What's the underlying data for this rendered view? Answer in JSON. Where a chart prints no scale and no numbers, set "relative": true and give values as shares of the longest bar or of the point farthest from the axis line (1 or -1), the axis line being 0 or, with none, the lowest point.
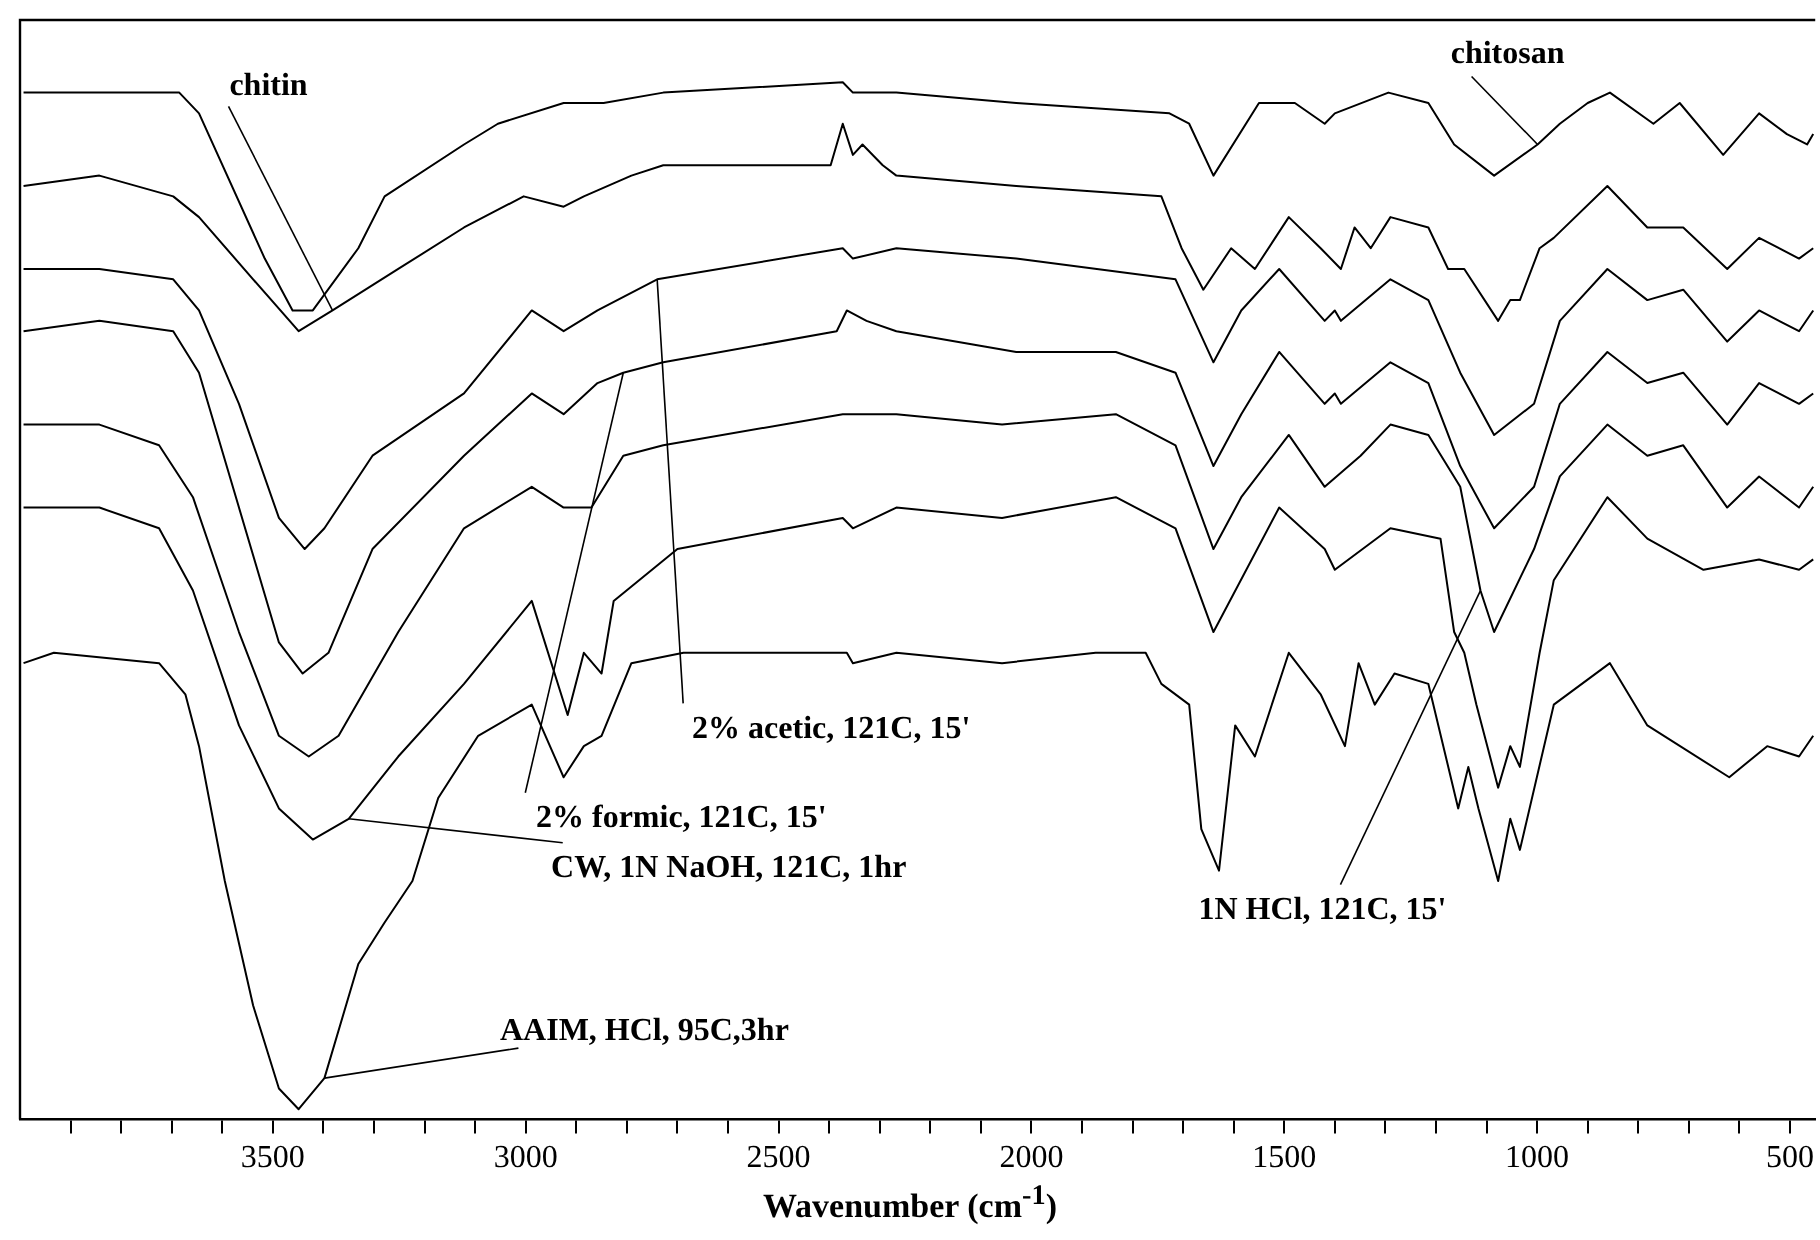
{
  "chart_data": {
    "type": "line",
    "relative": true,
    "xlabel": "Wavenumber (cm$^{-1}$)",
    "xlim": [
      4000,
      450
    ],
    "xticks": [
      {
        "value": 3900,
        "label": null
      },
      {
        "value": 3800,
        "label": null
      },
      {
        "value": 3700,
        "label": null
      },
      {
        "value": 3600,
        "label": null
      },
      3500,
      {
        "value": 3400,
        "label": null
      },
      {
        "value": 3300,
        "label": null
      },
      {
        "value": 3200,
        "label": null
      },
      {
        "value": 3100,
        "label": null
      },
      3000,
      {
        "value": 2900,
        "label": null
      },
      {
        "value": 2800,
        "label": null
      },
      {
        "value": 2700,
        "label": null
      },
      {
        "value": 2600,
        "label": null
      },
      2500,
      {
        "value": 2400,
        "label": null
      },
      {
        "value": 2300,
        "label": null
      },
      {
        "value": 2200,
        "label": null
      },
      {
        "value": 2100,
        "label": null
      },
      2000,
      {
        "value": 1900,
        "label": null
      },
      {
        "value": 1800,
        "label": null
      },
      {
        "value": 1700,
        "label": null
      },
      {
        "value": 1600,
        "label": null
      },
      1500,
      {
        "value": 1400,
        "label": null
      },
      {
        "value": 1300,
        "label": null
      },
      {
        "value": 1200,
        "label": null
      },
      {
        "value": 1100,
        "label": null
      },
      1000,
      {
        "value": 900,
        "label": null
      },
      {
        "value": 800,
        "label": null
      },
      {
        "value": 700,
        "label": null
      },
      {
        "value": 600,
        "label": null
      },
      500
    ],
    "grid": false,
    "legend": false,
    "marker": "none",
    "line_style": "solid",
    "series": [
      {
        "color": "#000000",
        "x": [
          3993,
          3685,
          3646,
          3516,
          3461,
          3421,
          3331,
          3279,
          3122,
          3055,
          2925,
          2846,
          2728,
          2373,
          2353,
          2267,
          2030,
          1727,
          1688,
          1640,
          1550,
          1479,
          1420,
          1400,
          1294,
          1215,
          1164,
          1085,
          999,
          955,
          900,
          856,
          770,
          718,
          632,
          561,
          506,
          466,
          454
        ],
        "values": [
          0.99,
          0.99,
          0.97,
          0.83,
          0.78,
          0.78,
          0.84,
          0.89,
          0.94,
          0.96,
          0.98,
          0.98,
          0.99,
          1.0,
          0.99,
          0.99,
          0.98,
          0.97,
          0.96,
          0.91,
          0.98,
          0.98,
          0.96,
          0.97,
          0.99,
          0.98,
          0.94,
          0.91,
          0.94,
          0.96,
          0.98,
          0.99,
          0.96,
          0.98,
          0.93,
          0.97,
          0.95,
          0.94,
          0.95
        ]
      },
      {
        "color": "#000000",
        "x": [
          3993,
          3843,
          3697,
          3646,
          3539,
          3449,
          3382,
          3252,
          3122,
          3004,
          2925,
          2885,
          2791,
          2728,
          2397,
          2373,
          2353,
          2334,
          2294,
          2267,
          2030,
          1743,
          1703,
          1660,
          1605,
          1558,
          1491,
          1428,
          1388,
          1361,
          1329,
          1290,
          1215,
          1176,
          1144,
          1077,
          1053,
          1034,
          995,
          967,
          861,
          782,
          711,
          624,
          561,
          482,
          454
        ],
        "values": [
          0.9,
          0.91,
          0.89,
          0.87,
          0.81,
          0.76,
          0.78,
          0.82,
          0.86,
          0.89,
          0.88,
          0.89,
          0.91,
          0.92,
          0.92,
          0.96,
          0.93,
          0.94,
          0.92,
          0.91,
          0.9,
          0.89,
          0.84,
          0.8,
          0.84,
          0.82,
          0.87,
          0.84,
          0.82,
          0.86,
          0.84,
          0.87,
          0.86,
          0.82,
          0.82,
          0.77,
          0.79,
          0.79,
          0.84,
          0.85,
          0.9,
          0.86,
          0.86,
          0.82,
          0.85,
          0.83,
          0.84
        ]
      },
      {
        "color": "#000000",
        "x": [
          3993,
          3843,
          3697,
          3646,
          3567,
          3488,
          3437,
          3398,
          3303,
          3122,
          2988,
          2925,
          2858,
          2740,
          2373,
          2353,
          2267,
          2030,
          1715,
          1640,
          1585,
          1510,
          1420,
          1400,
          1388,
          1290,
          1215,
          1152,
          1085,
          1006,
          955,
          861,
          782,
          711,
          624,
          561,
          482,
          454
        ],
        "values": [
          0.82,
          0.82,
          0.81,
          0.78,
          0.69,
          0.58,
          0.55,
          0.57,
          0.64,
          0.7,
          0.78,
          0.76,
          0.78,
          0.81,
          0.84,
          0.83,
          0.84,
          0.83,
          0.81,
          0.73,
          0.78,
          0.82,
          0.77,
          0.78,
          0.77,
          0.81,
          0.79,
          0.72,
          0.66,
          0.69,
          0.77,
          0.82,
          0.79,
          0.8,
          0.75,
          0.78,
          0.76,
          0.78
        ]
      },
      {
        "color": "#000000",
        "x": [
          3993,
          3843,
          3697,
          3646,
          3567,
          3488,
          3441,
          3390,
          3303,
          3122,
          2988,
          2925,
          2858,
          2807,
          2728,
          2385,
          2365,
          2326,
          2267,
          2030,
          1833,
          1715,
          1640,
          1585,
          1510,
          1420,
          1400,
          1388,
          1290,
          1215,
          1152,
          1085,
          1006,
          955,
          861,
          782,
          711,
          624,
          561,
          482,
          454
        ],
        "values": [
          0.76,
          0.77,
          0.76,
          0.72,
          0.59,
          0.46,
          0.43,
          0.45,
          0.55,
          0.64,
          0.7,
          0.68,
          0.71,
          0.72,
          0.73,
          0.76,
          0.78,
          0.77,
          0.76,
          0.74,
          0.74,
          0.72,
          0.63,
          0.68,
          0.74,
          0.69,
          0.7,
          0.69,
          0.73,
          0.71,
          0.63,
          0.57,
          0.61,
          0.69,
          0.74,
          0.71,
          0.72,
          0.67,
          0.71,
          0.69,
          0.7
        ]
      },
      {
        "color": "#000000",
        "x": [
          3993,
          3843,
          3725,
          3658,
          3567,
          3488,
          3429,
          3370,
          3252,
          3122,
          2988,
          2925,
          2870,
          2807,
          2728,
          2373,
          2267,
          2058,
          1833,
          1715,
          1640,
          1585,
          1491,
          1420,
          1349,
          1290,
          1215,
          1152,
          1112,
          1085,
          1006,
          955,
          861,
          782,
          711,
          624,
          561,
          482,
          454
        ],
        "values": [
          0.67,
          0.67,
          0.65,
          0.6,
          0.47,
          0.37,
          0.35,
          0.37,
          0.47,
          0.57,
          0.61,
          0.59,
          0.59,
          0.64,
          0.65,
          0.68,
          0.68,
          0.67,
          0.68,
          0.65,
          0.55,
          0.6,
          0.66,
          0.61,
          0.64,
          0.67,
          0.66,
          0.61,
          0.51,
          0.47,
          0.55,
          0.62,
          0.67,
          0.64,
          0.65,
          0.59,
          0.62,
          0.59,
          0.61
        ]
      },
      {
        "color": "#000000",
        "x": [
          3993,
          3843,
          3725,
          3658,
          3567,
          3488,
          3421,
          3350,
          3252,
          3122,
          2988,
          2917,
          2885,
          2850,
          2826,
          2700,
          2373,
          2353,
          2267,
          2058,
          1833,
          1715,
          1640,
          1510,
          1420,
          1400,
          1290,
          1191,
          1164,
          1144,
          1120,
          1077,
          1053,
          1034,
          995,
          967,
          861,
          782,
          671,
          561,
          482,
          454
        ],
        "values": [
          0.59,
          0.59,
          0.57,
          0.51,
          0.38,
          0.3,
          0.27,
          0.29,
          0.35,
          0.42,
          0.5,
          0.39,
          0.45,
          0.43,
          0.5,
          0.55,
          0.58,
          0.57,
          0.59,
          0.58,
          0.6,
          0.57,
          0.47,
          0.59,
          0.55,
          0.53,
          0.57,
          0.56,
          0.47,
          0.45,
          0.4,
          0.32,
          0.36,
          0.34,
          0.45,
          0.52,
          0.6,
          0.56,
          0.53,
          0.54,
          0.53,
          0.54
        ]
      },
      {
        "color": "#000000",
        "x": [
          3993,
          3933,
          3725,
          3673,
          3646,
          3595,
          3539,
          3488,
          3449,
          3398,
          3331,
          3279,
          3224,
          3173,
          3094,
          2988,
          2925,
          2885,
          2850,
          2791,
          2688,
          2365,
          2353,
          2267,
          2058,
          1873,
          1774,
          1743,
          1688,
          1664,
          1629,
          1597,
          1558,
          1491,
          1428,
          1380,
          1353,
          1321,
          1282,
          1215,
          1156,
          1136,
          1116,
          1077,
          1053,
          1034,
          967,
          856,
          782,
          620,
          545,
          482,
          454
        ],
        "values": [
          0.44,
          0.45,
          0.44,
          0.41,
          0.36,
          0.23,
          0.11,
          0.03,
          0.01,
          0.04,
          0.15,
          0.19,
          0.23,
          0.31,
          0.37,
          0.4,
          0.33,
          0.36,
          0.37,
          0.44,
          0.45,
          0.45,
          0.44,
          0.45,
          0.44,
          0.45,
          0.45,
          0.42,
          0.4,
          0.28,
          0.24,
          0.38,
          0.35,
          0.45,
          0.41,
          0.36,
          0.44,
          0.4,
          0.43,
          0.42,
          0.3,
          0.34,
          0.3,
          0.23,
          0.29,
          0.26,
          0.4,
          0.44,
          0.38,
          0.33,
          0.36,
          0.35,
          0.37
        ]
      }
    ],
    "annotations": [
      {
        "text": "chitin",
        "x": 3382,
        "y": 0.78
      },
      {
        "text": "chitosan",
        "x": 999,
        "y": 0.94
      },
      {
        "text": "2% acetic, 121C, 15'",
        "x": 2740,
        "y": 0.81
      },
      {
        "text": "2% formic, 121C, 15'",
        "x": 2807,
        "y": 0.72
      },
      {
        "text": "CW, 1N NaOH, 121C, 1hr",
        "x": 3350,
        "y": 0.29
      },
      {
        "text": "AAIM, HCl, 95C,3hr",
        "x": 3398,
        "y": 0.04
      },
      {
        "text": "1N HCl, 121C, 15'",
        "x": 1112,
        "y": 0.51
      }
    ]
  }
}
